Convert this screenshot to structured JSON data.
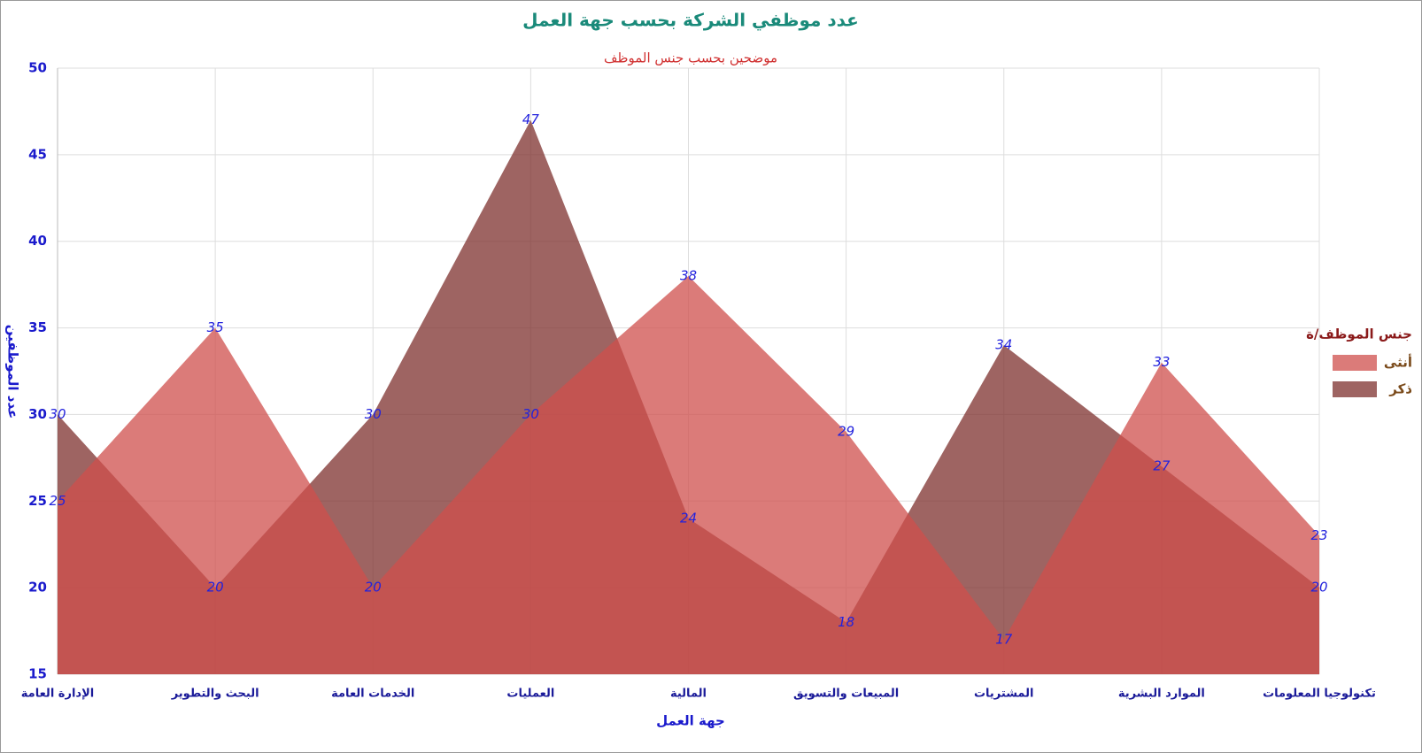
{
  "chart_data": {
    "type": "area",
    "title": "عدد موظفي الشركة بحسب جهة العمل",
    "subtitle": "موضحين بحسب جنس الموظف",
    "x_label": "جهة العمل",
    "y_label": "عدد الموظفين",
    "legend_title": "جنس الموظف/ة",
    "categories": [
      "الإدارة العامة",
      "البحث والتطوير",
      "الخدمات العامة",
      "العمليات",
      "المالية",
      "المبيعات والتسويق",
      "المشتريات",
      "الموارد البشرية",
      "تكنولوجيا المعلومات"
    ],
    "series": [
      {
        "name": "أنثى",
        "color": "#cf4f4c",
        "values": [
          25,
          35,
          20,
          30,
          38,
          29,
          17,
          33,
          23
        ]
      },
      {
        "name": "ذكر",
        "color": "#7d302e",
        "values": [
          30,
          20,
          30,
          47,
          24,
          18,
          34,
          27,
          20
        ]
      }
    ],
    "ylim": [
      15,
      50
    ],
    "yticks": [
      15,
      20,
      25,
      30,
      35,
      40,
      45,
      50
    ],
    "grid": true
  }
}
